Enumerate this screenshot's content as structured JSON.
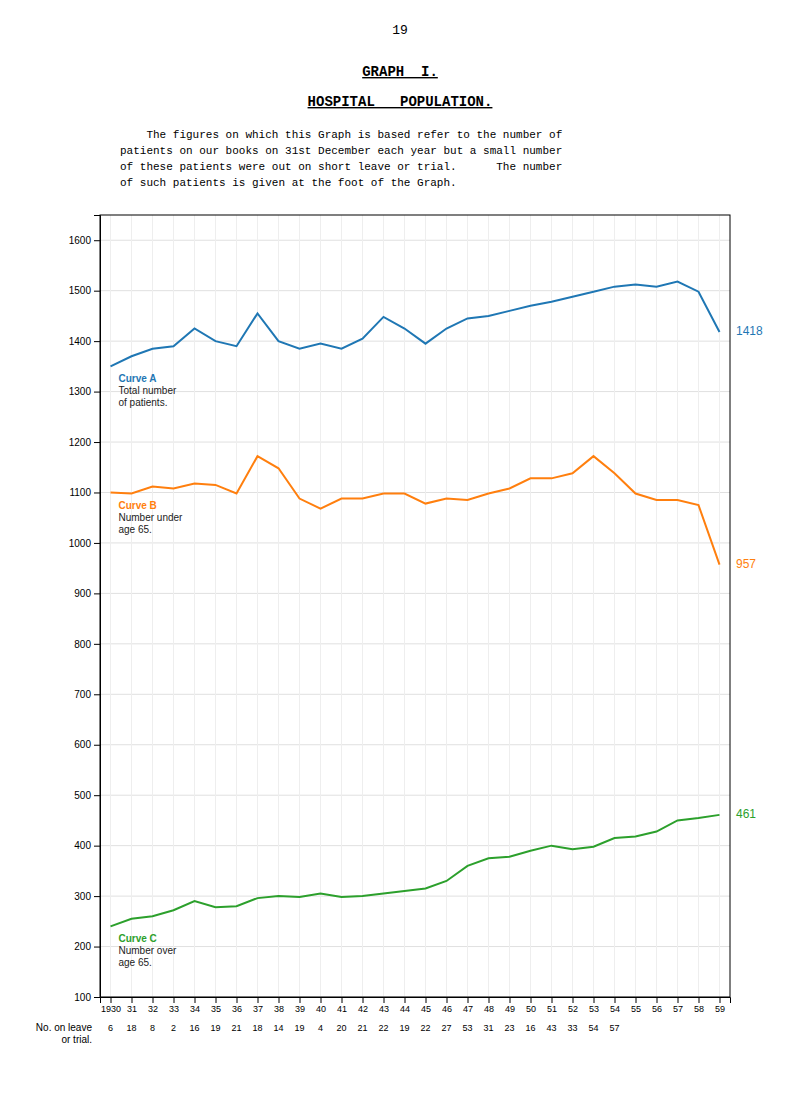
{
  "chart_data": {
    "type": "line",
    "page": "19",
    "title": "GRAPH  I.",
    "subtitle": "HOSPITAL   POPULATION.",
    "description": [
      "    The figures on which this Graph is based refer to the number of",
      "patients on our books on 31st December each year but a small number",
      "of these patients were out on short leave or trial.      The number",
      "of such patients is given at the foot of the Graph."
    ],
    "x": [
      1930,
      1931,
      1932,
      1933,
      1934,
      1935,
      1936,
      1937,
      1938,
      1939,
      1940,
      1941,
      1942,
      1943,
      1944,
      1945,
      1946,
      1947,
      1948,
      1949,
      1950,
      1951,
      1952,
      1953,
      1954,
      1955,
      1956,
      1957,
      1958,
      1959
    ],
    "series": [
      {
        "name": "Curve A",
        "note": [
          "Total number",
          "of patients."
        ],
        "values": [
          1350,
          1370,
          1385,
          1390,
          1425,
          1400,
          1390,
          1455,
          1400,
          1385,
          1395,
          1385,
          1405,
          1448,
          1425,
          1395,
          1425,
          1445,
          1450,
          1460,
          1470,
          1478,
          1488,
          1498,
          1508,
          1512,
          1508,
          1518,
          1498,
          1418
        ]
      },
      {
        "name": "Curve B",
        "note": [
          "Number under",
          "age 65."
        ],
        "values": [
          1100,
          1098,
          1112,
          1108,
          1118,
          1115,
          1098,
          1172,
          1148,
          1088,
          1068,
          1088,
          1088,
          1098,
          1098,
          1078,
          1088,
          1085,
          1098,
          1108,
          1128,
          1128,
          1138,
          1172,
          1138,
          1098,
          1085,
          1085,
          1075,
          957
        ]
      },
      {
        "name": "Curve C",
        "note": [
          "Number over",
          "age 65."
        ],
        "values": [
          240,
          255,
          260,
          272,
          290,
          278,
          280,
          296,
          300,
          298,
          305,
          298,
          300,
          305,
          310,
          315,
          330,
          360,
          375,
          378,
          390,
          400,
          393,
          398,
          415,
          418,
          428,
          450,
          455,
          461
        ]
      }
    ],
    "leave": {
      "label": [
        "No. on leave",
        "or trial."
      ],
      "values": [
        6,
        18,
        8,
        2,
        16,
        19,
        21,
        18,
        14,
        19,
        4,
        20,
        21,
        22,
        19,
        22,
        27,
        53,
        31,
        23,
        16,
        43,
        33,
        54,
        57
      ]
    },
    "xlim": [
      1929.5,
      1959.5
    ],
    "xticks": [
      1930,
      {
        "value": 1931,
        "label": "31"
      },
      {
        "value": 1932,
        "label": "32"
      },
      {
        "value": 1933,
        "label": "33"
      },
      {
        "value": 1934,
        "label": "34"
      },
      {
        "value": 1935,
        "label": "35"
      },
      {
        "value": 1936,
        "label": "36"
      },
      {
        "value": 1937,
        "label": "37"
      },
      {
        "value": 1938,
        "label": "38"
      },
      {
        "value": 1939,
        "label": "39"
      },
      {
        "value": 1940,
        "label": "40"
      },
      {
        "value": 1941,
        "label": "41"
      },
      {
        "value": 1942,
        "label": "42"
      },
      {
        "value": 1943,
        "label": "43"
      },
      {
        "value": 1944,
        "label": "44"
      },
      {
        "value": 1945,
        "label": "45"
      },
      {
        "value": 1946,
        "label": "46"
      },
      {
        "value": 1947,
        "label": "47"
      },
      {
        "value": 1948,
        "label": "48"
      },
      {
        "value": 1949,
        "label": "49"
      },
      {
        "value": 1950,
        "label": "50"
      },
      {
        "value": 1951,
        "label": "51"
      },
      {
        "value": 1952,
        "label": "52"
      },
      {
        "value": 1953,
        "label": "53"
      },
      {
        "value": 1954,
        "label": "54"
      },
      {
        "value": 1955,
        "label": "55"
      },
      {
        "value": 1956,
        "label": "56"
      },
      {
        "value": 1957,
        "label": "57"
      },
      {
        "value": 1958,
        "label": "58"
      },
      {
        "value": 1959,
        "label": "59"
      }
    ],
    "ylim": [
      100,
      1650
    ],
    "yticks": [
      100,
      200,
      300,
      400,
      500,
      600,
      700,
      800,
      900,
      1000,
      1100,
      1200,
      1300,
      1400,
      1500,
      1600
    ],
    "grid": true
  }
}
